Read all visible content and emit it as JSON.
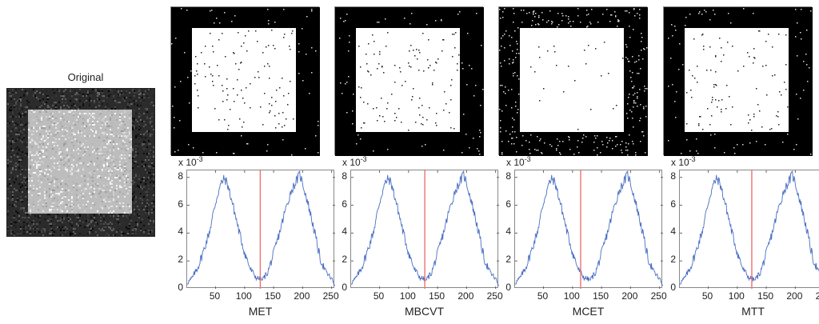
{
  "original": {
    "title": "Original"
  },
  "chart_data": [
    {
      "type": "line",
      "title": "",
      "xlabel": "MET",
      "ylabel": "",
      "y_scale_label": "x 10^-3",
      "exp_label": "x 10",
      "exp_sup": "-3",
      "xlim": [
        1,
        256
      ],
      "ylim": [
        0,
        8.5
      ],
      "xticks": [
        50,
        100,
        150,
        200,
        250
      ],
      "yticks": [
        0,
        2,
        4,
        6,
        8
      ],
      "threshold": 127,
      "series": [
        {
          "name": "histogram",
          "x": [
            1,
            10,
            20,
            30,
            40,
            50,
            55,
            60,
            65,
            70,
            80,
            90,
            100,
            110,
            120,
            127,
            130,
            140,
            150,
            160,
            170,
            180,
            190,
            195,
            200,
            210,
            220,
            230,
            240,
            250,
            255
          ],
          "values": [
            0.4,
            0.8,
            1.6,
            2.8,
            4.2,
            6.2,
            7.0,
            7.6,
            7.9,
            7.6,
            6.0,
            4.2,
            2.6,
            1.4,
            0.8,
            0.7,
            0.6,
            1.2,
            2.5,
            4.0,
            5.6,
            7.0,
            7.8,
            8.2,
            7.6,
            6.0,
            4.2,
            2.2,
            1.2,
            0.7,
            0.3
          ]
        }
      ],
      "color_line": "#4a6fc2",
      "color_threshold": "#f07070"
    },
    {
      "type": "line",
      "xlabel": "MBCVT",
      "exp_label": "x 10",
      "exp_sup": "-3",
      "xlim": [
        1,
        256
      ],
      "ylim": [
        0,
        8.5
      ],
      "xticks": [
        50,
        100,
        150,
        200,
        250
      ],
      "yticks": [
        0,
        2,
        4,
        6,
        8
      ],
      "threshold": 128
    },
    {
      "type": "line",
      "xlabel": "MCET",
      "exp_label": "x 10",
      "exp_sup": "-3",
      "xlim": [
        1,
        256
      ],
      "ylim": [
        0,
        8.5
      ],
      "xticks": [
        50,
        100,
        150,
        200,
        250
      ],
      "yticks": [
        0,
        2,
        4,
        6,
        8
      ],
      "threshold": 114
    },
    {
      "type": "line",
      "xlabel": "MTT",
      "exp_label": "x 10",
      "exp_sup": "-3",
      "xlim": [
        1,
        256
      ],
      "ylim": [
        0,
        8.5
      ],
      "xticks": [
        50,
        100,
        150,
        200,
        250
      ],
      "yticks": [
        0,
        2,
        4,
        6,
        8
      ],
      "threshold": 125
    }
  ],
  "panels": [
    {
      "name": "MET",
      "threshold": 127,
      "bg_dots": 60,
      "fg_dots": 110
    },
    {
      "name": "MBCVT",
      "threshold": 128,
      "bg_dots": 60,
      "fg_dots": 110
    },
    {
      "name": "MCET",
      "threshold": 114,
      "bg_dots": 300,
      "fg_dots": 25
    },
    {
      "name": "MTT",
      "threshold": 125,
      "bg_dots": 70,
      "fg_dots": 95
    }
  ]
}
